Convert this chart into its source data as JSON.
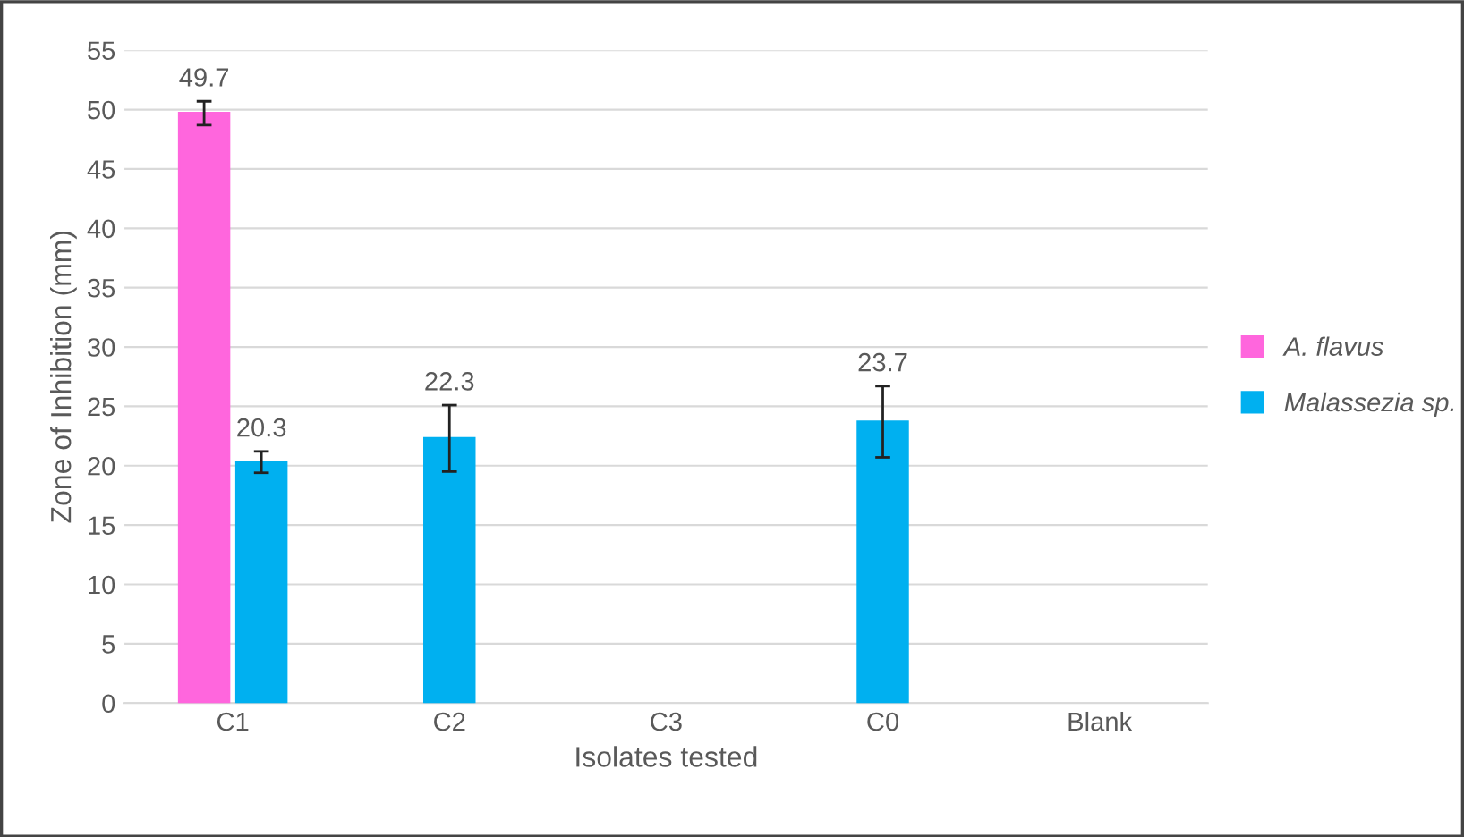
{
  "chart_data": {
    "type": "bar",
    "xlabel": "Isolates tested",
    "ylabel": "Zone of Inhibition (mm)",
    "categories": [
      "C1",
      "C2",
      "C3",
      "C0",
      "Blank"
    ],
    "series": [
      {
        "name": "A. flavus",
        "color": "#ff66dd",
        "values": [
          49.7,
          null,
          null,
          null,
          null
        ],
        "errors": [
          1.0,
          null,
          null,
          null,
          null
        ]
      },
      {
        "name": "Malassezia sp.",
        "color": "#00b0f0",
        "values": [
          20.3,
          22.3,
          null,
          23.7,
          null
        ],
        "errors": [
          0.9,
          2.8,
          null,
          3.0,
          null
        ]
      }
    ],
    "ylim": [
      0,
      55
    ],
    "yticks": [
      0,
      5,
      10,
      15,
      20,
      25,
      30,
      35,
      40,
      45,
      50,
      55
    ],
    "grid": "y",
    "legend": "right",
    "data_labels": true
  }
}
